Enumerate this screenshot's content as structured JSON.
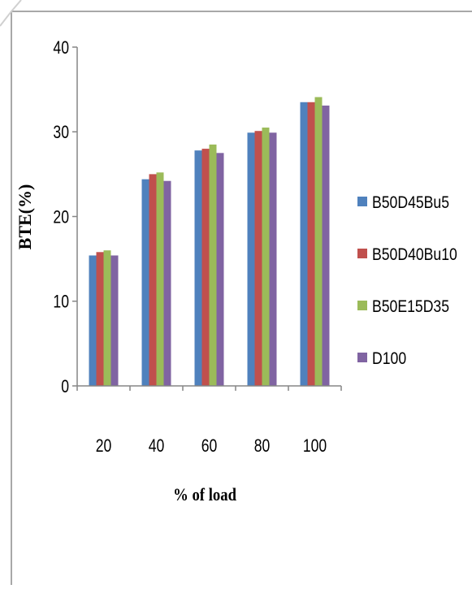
{
  "chart_data": {
    "type": "bar",
    "title": "",
    "xlabel": "% of load",
    "ylabel": "BTE(%)",
    "categories": [
      "20",
      "40",
      "60",
      "80",
      "100"
    ],
    "ylim": [
      0,
      40
    ],
    "yticks": [
      0,
      10,
      20,
      30,
      40
    ],
    "grid": false,
    "legend_position": "right",
    "series": [
      {
        "name": "B50D45Bu5",
        "color": "#4F81BD",
        "values": [
          15.4,
          24.4,
          27.8,
          29.9,
          33.5
        ]
      },
      {
        "name": "B50D40Bu10",
        "color": "#C0504D",
        "values": [
          15.8,
          25.0,
          28.0,
          30.1,
          33.5
        ]
      },
      {
        "name": "B50E15D35",
        "color": "#9BBB59",
        "values": [
          16.0,
          25.2,
          28.5,
          30.5,
          34.1
        ]
      },
      {
        "name": "D100",
        "color": "#8064A2",
        "values": [
          15.4,
          24.2,
          27.5,
          29.9,
          33.1
        ]
      }
    ]
  }
}
